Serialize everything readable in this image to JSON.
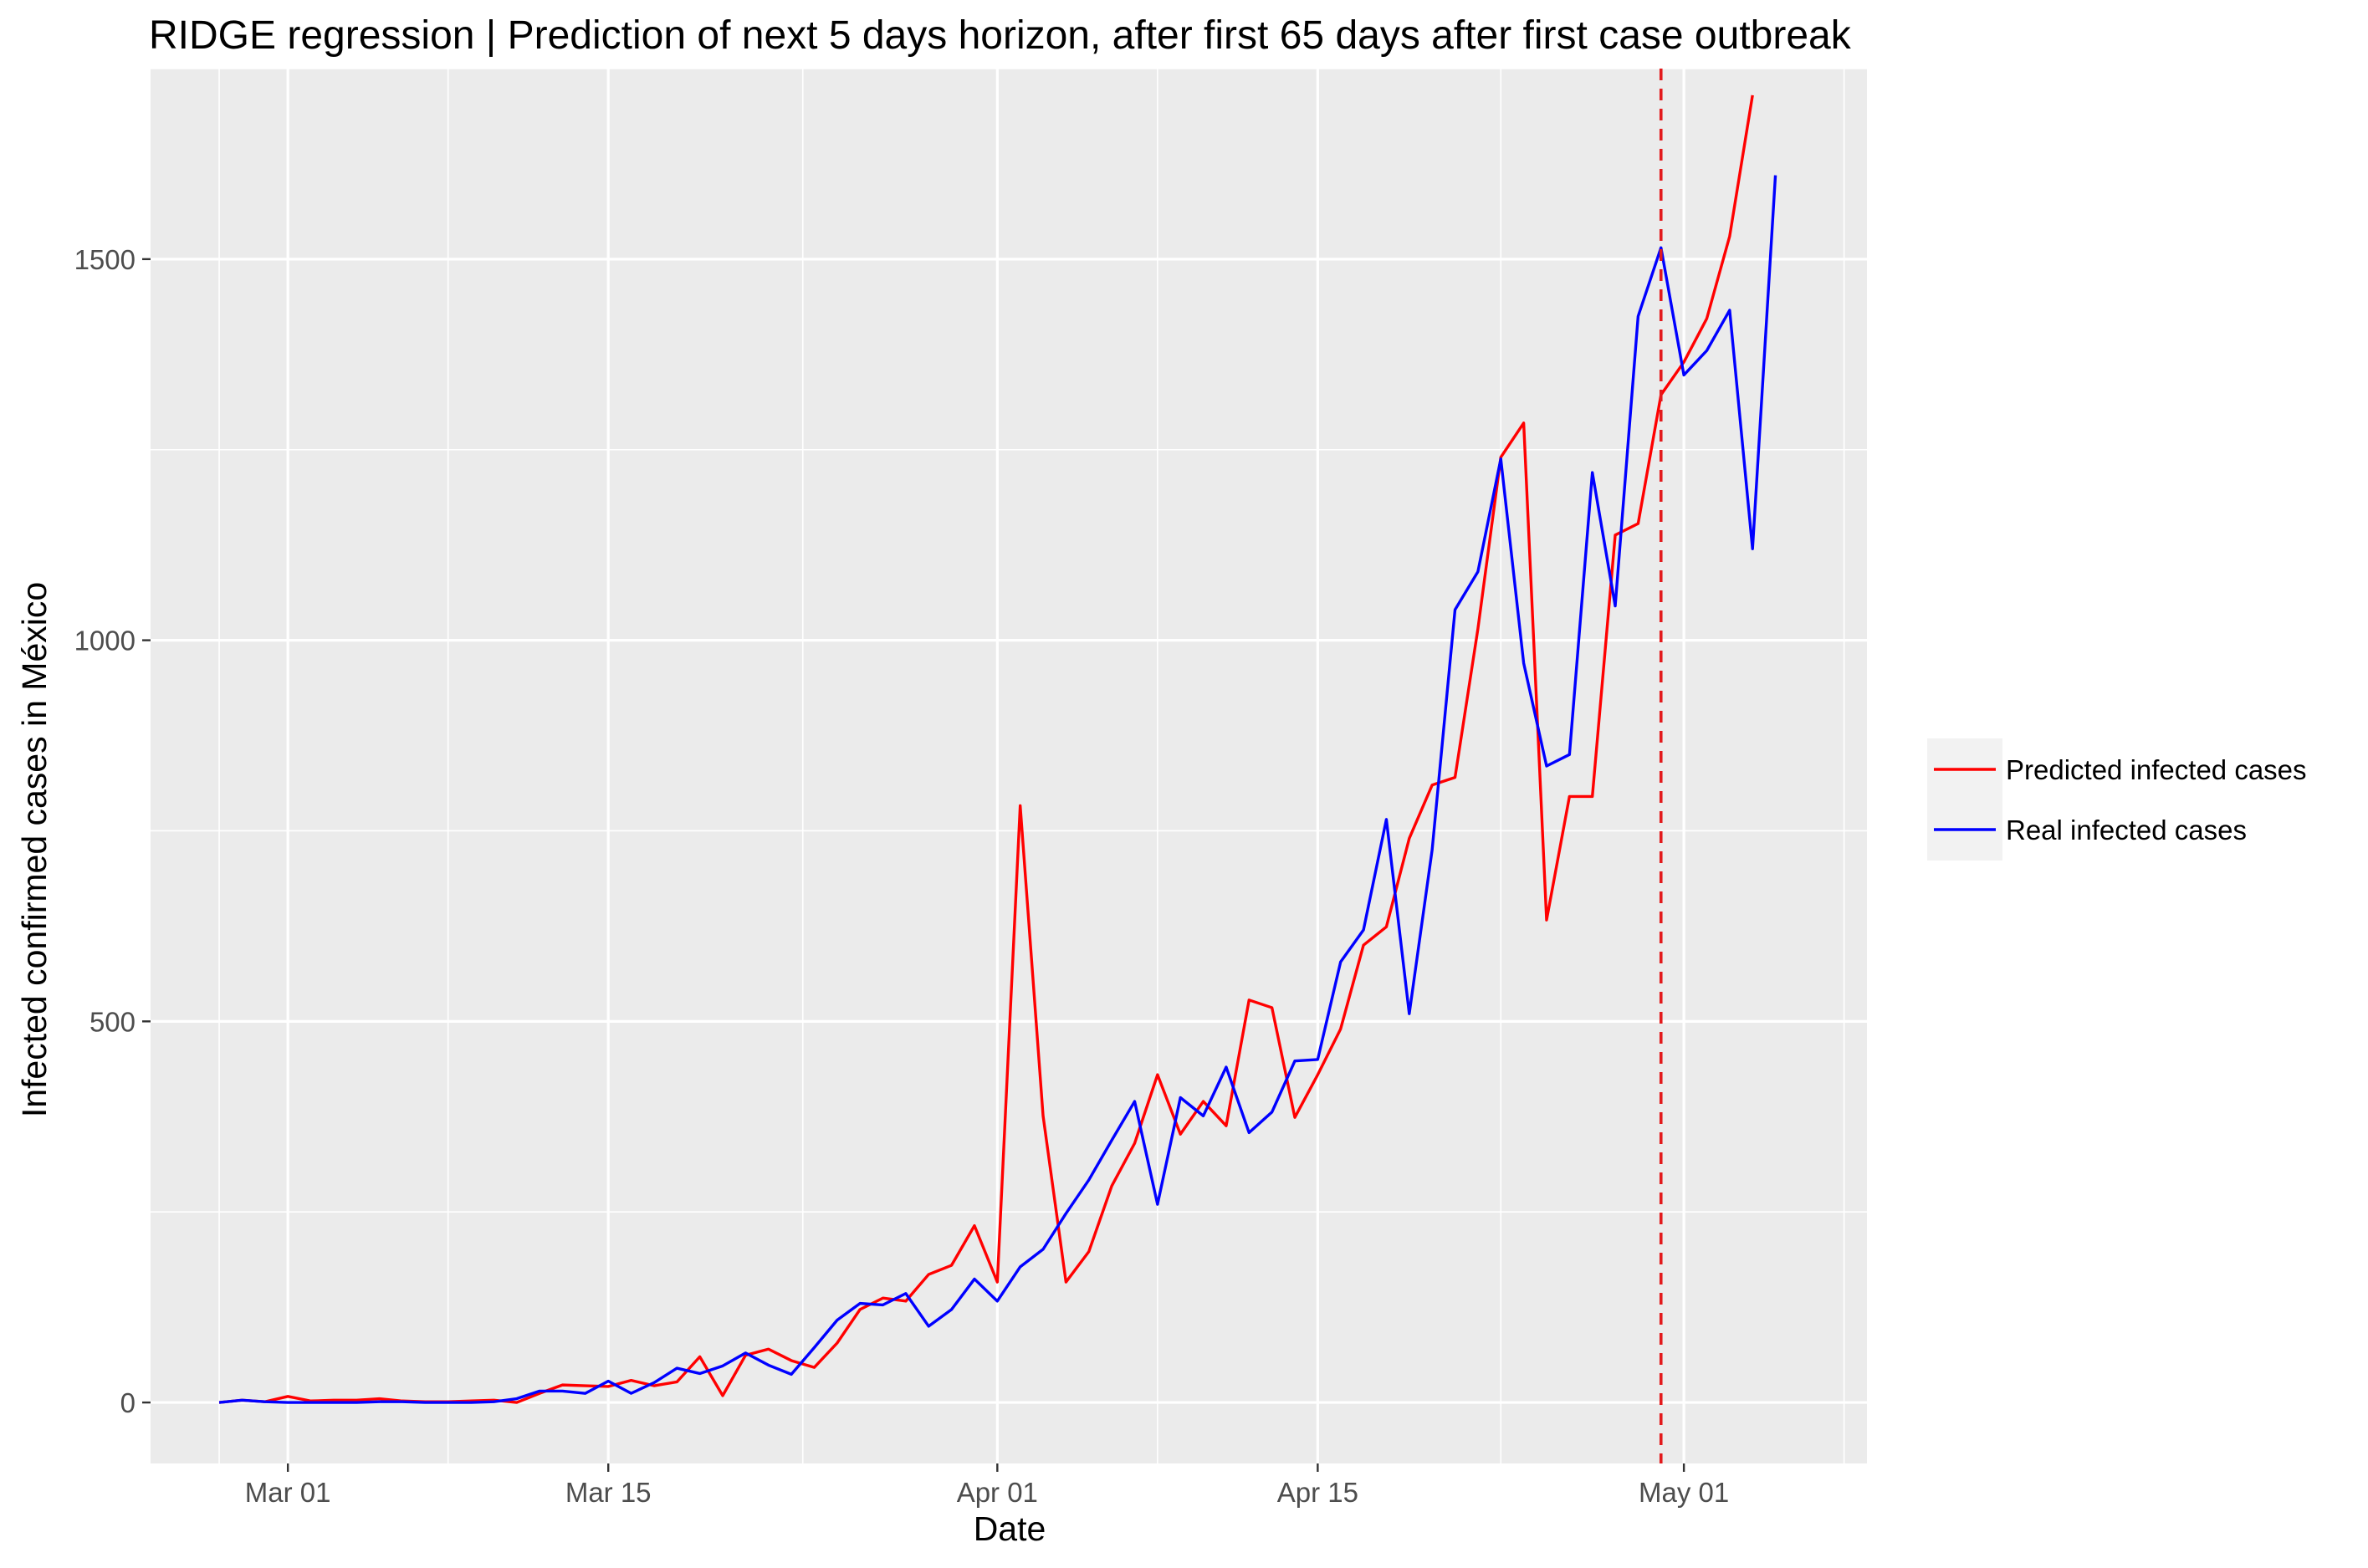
{
  "chart_data": {
    "type": "line",
    "title": "RIDGE regression | Prediction of next 5 days horizon, after first 65 days after first case outbreak",
    "xlabel": "Date",
    "ylabel": "Infected confirmed cases in México",
    "x_axis": {
      "type": "date",
      "range": [
        "2020-02-24",
        "2020-05-09"
      ],
      "ticks": [
        {
          "date": "2020-03-01",
          "label": "Mar 01"
        },
        {
          "date": "2020-03-15",
          "label": "Mar 15"
        },
        {
          "date": "2020-04-01",
          "label": "Apr 01"
        },
        {
          "date": "2020-04-15",
          "label": "Apr 15"
        },
        {
          "date": "2020-05-01",
          "label": "May 01"
        }
      ]
    },
    "y_axis": {
      "range": [
        -80,
        1750
      ],
      "ticks": [
        0,
        500,
        1000,
        1500
      ]
    },
    "grid": true,
    "legend_position": "right",
    "vline": {
      "date": "2020-04-30",
      "style": "dashed",
      "color": "#e31a1c"
    },
    "x": [
      "2020-02-27",
      "2020-02-28",
      "2020-02-29",
      "2020-03-01",
      "2020-03-02",
      "2020-03-03",
      "2020-03-04",
      "2020-03-05",
      "2020-03-06",
      "2020-03-07",
      "2020-03-08",
      "2020-03-09",
      "2020-03-10",
      "2020-03-11",
      "2020-03-12",
      "2020-03-13",
      "2020-03-14",
      "2020-03-15",
      "2020-03-16",
      "2020-03-17",
      "2020-03-18",
      "2020-03-19",
      "2020-03-20",
      "2020-03-21",
      "2020-03-22",
      "2020-03-23",
      "2020-03-24",
      "2020-03-25",
      "2020-03-26",
      "2020-03-27",
      "2020-03-28",
      "2020-03-29",
      "2020-03-30",
      "2020-03-31",
      "2020-04-01",
      "2020-04-02",
      "2020-04-03",
      "2020-04-04",
      "2020-04-05",
      "2020-04-06",
      "2020-04-07",
      "2020-04-08",
      "2020-04-09",
      "2020-04-10",
      "2020-04-11",
      "2020-04-12",
      "2020-04-13",
      "2020-04-14",
      "2020-04-15",
      "2020-04-16",
      "2020-04-17",
      "2020-04-18",
      "2020-04-19",
      "2020-04-20",
      "2020-04-21",
      "2020-04-22",
      "2020-04-23",
      "2020-04-24",
      "2020-04-25",
      "2020-04-26",
      "2020-04-27",
      "2020-04-28",
      "2020-04-29",
      "2020-04-30",
      "2020-05-01",
      "2020-05-02",
      "2020-05-03",
      "2020-05-04",
      "2020-05-05"
    ],
    "series": [
      {
        "name": "Predicted infected cases",
        "color": "#ff0000",
        "values": [
          0,
          3,
          1,
          8,
          2,
          3,
          3,
          5,
          2,
          1,
          1,
          2,
          3,
          0,
          12,
          23,
          22,
          21,
          29,
          22,
          27,
          60,
          9,
          62,
          70,
          55,
          46,
          78,
          122,
          137,
          133,
          168,
          180,
          232,
          158,
          783,
          376,
          158,
          198,
          284,
          340,
          430,
          352,
          395,
          363,
          528,
          518,
          374,
          430,
          490,
          600,
          624,
          740,
          810,
          820,
          1015,
          1240,
          1285,
          633,
          795,
          795,
          1138,
          1153,
          1322,
          1365,
          1422,
          1530,
          1715,
          null
        ]
      },
      {
        "name": "Real infected cases",
        "color": "#0000ff",
        "values": [
          0,
          3,
          1,
          0,
          0,
          0,
          0,
          1,
          1,
          0,
          0,
          0,
          1,
          5,
          15,
          15,
          12,
          28,
          12,
          26,
          45,
          38,
          48,
          65,
          49,
          37,
          72,
          108,
          130,
          128,
          143,
          100,
          122,
          162,
          133,
          178,
          201,
          248,
          292,
          344,
          395,
          260,
          400,
          376,
          440,
          354,
          381,
          448,
          450,
          578,
          620,
          765,
          510,
          725,
          1040,
          1090,
          1238,
          970,
          835,
          850,
          1220,
          1045,
          1425,
          1515,
          1348,
          1380,
          1433,
          1120,
          1610
        ]
      }
    ]
  }
}
